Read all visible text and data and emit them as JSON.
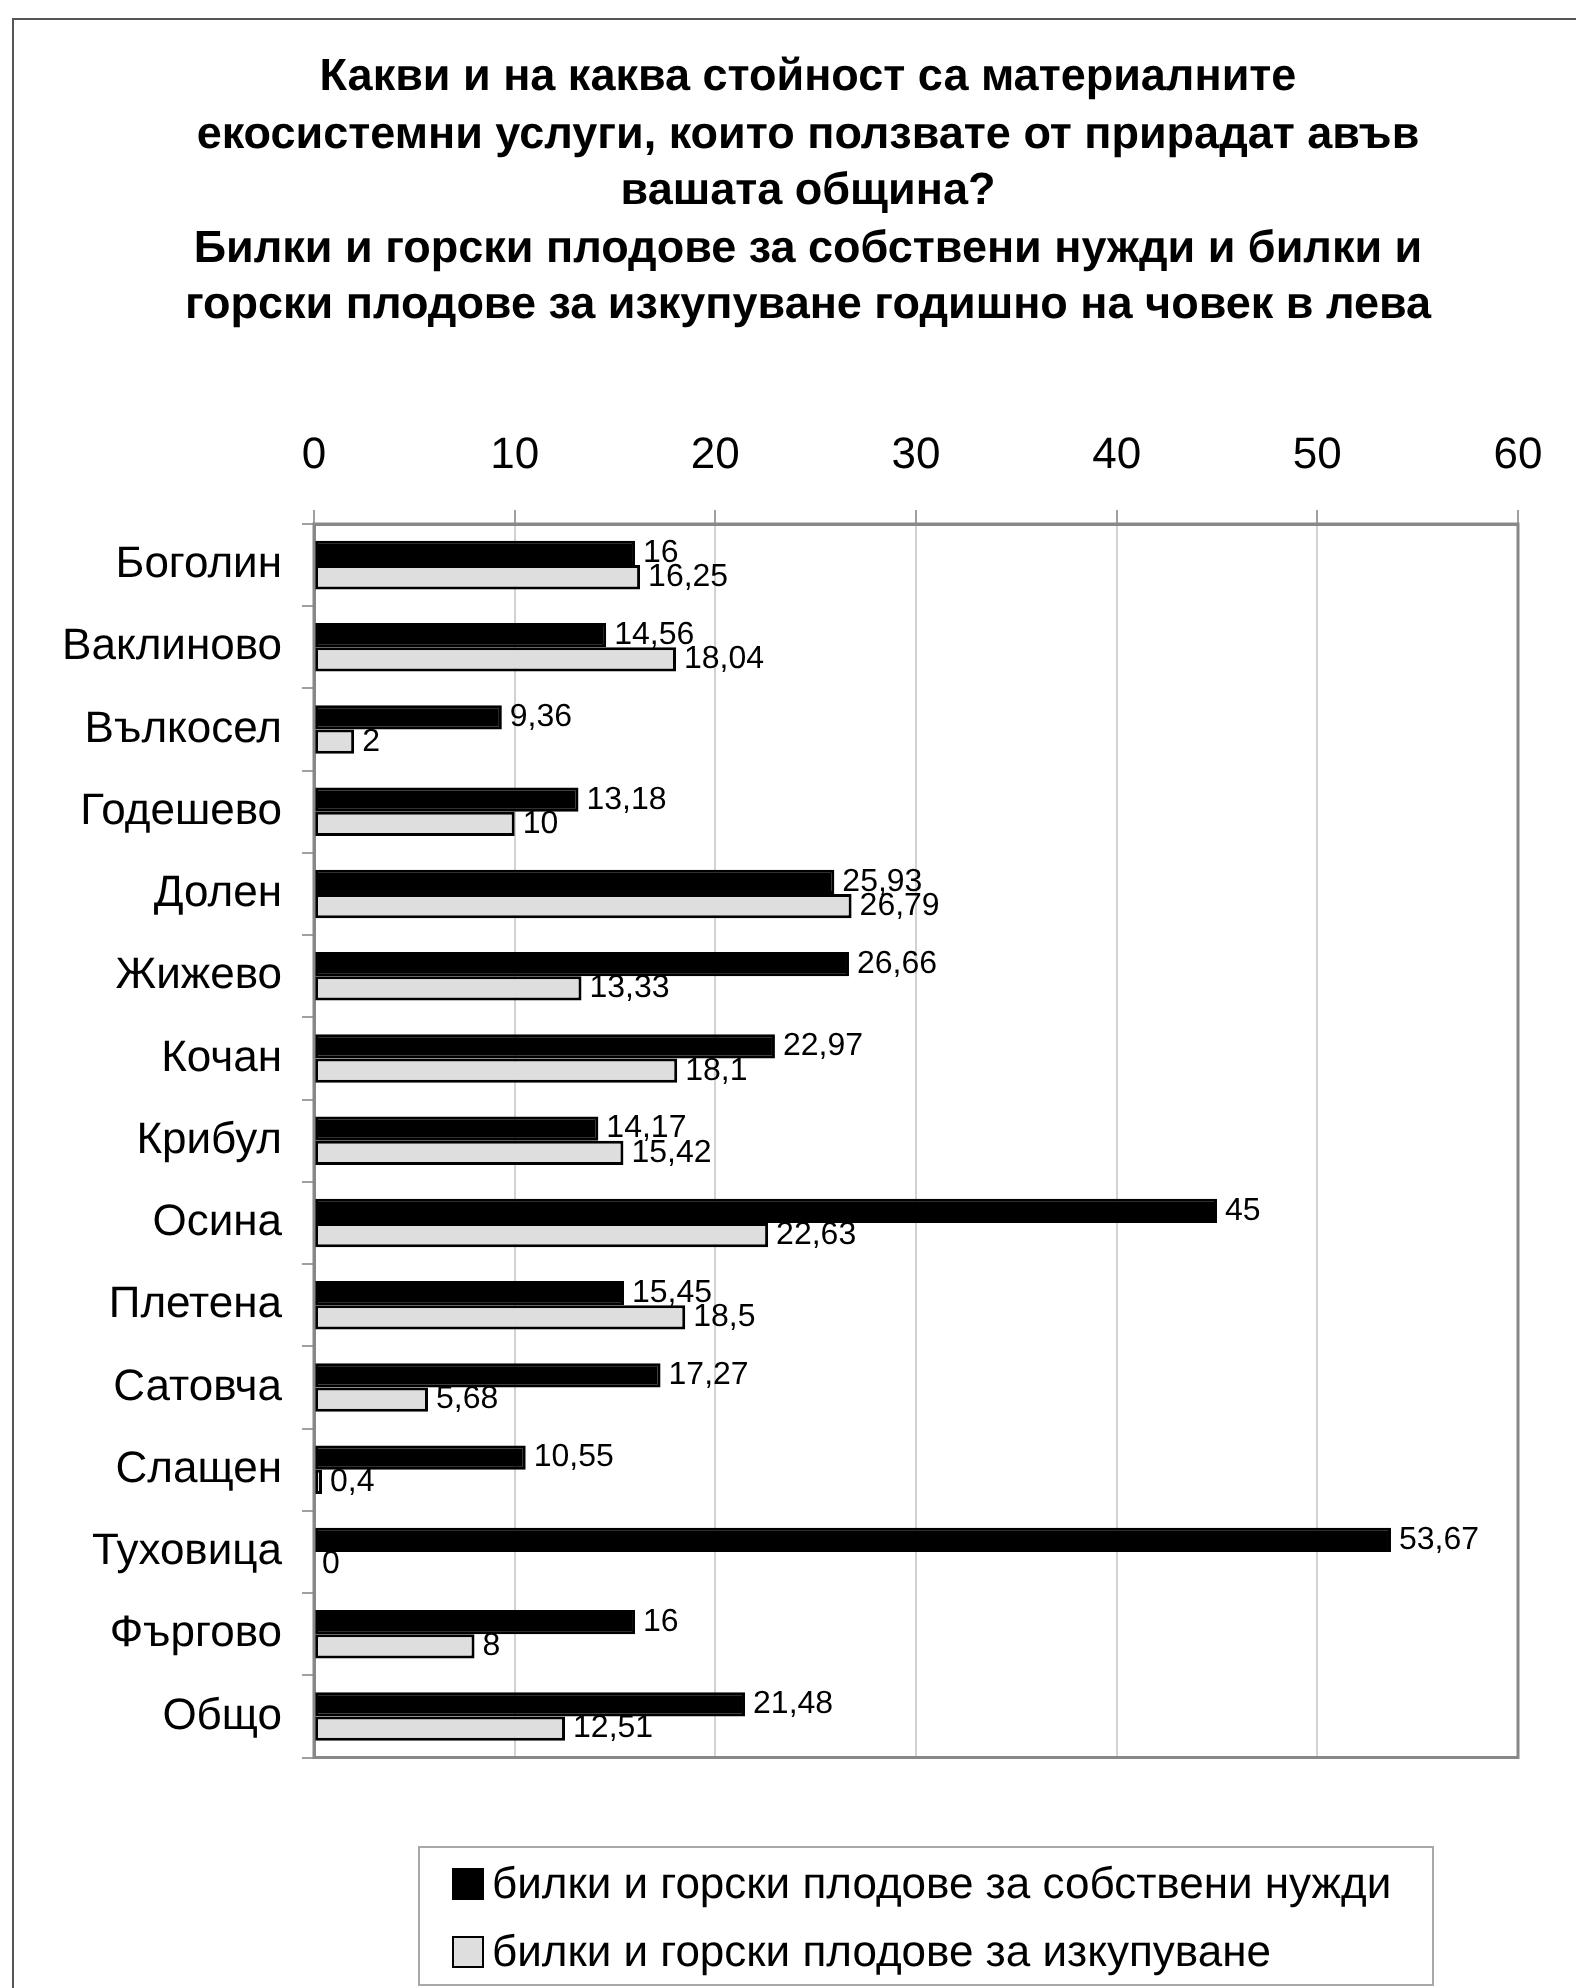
{
  "chart_data": {
    "type": "bar",
    "orientation": "horizontal",
    "title": "Какви и на каква стойност са материалните\nекосистемни услуги, които ползвате от прирадат авъв вашата община?",
    "subtitle": "Билки и горски плодове за собствени нужди и билки и горски плодове за изкупуване годишно на човек в лева",
    "categories": [
      "Боголин",
      "Ваклиново",
      "Вълкосел",
      "Годешево",
      "Долен",
      "Жижево",
      "Кочан",
      "Крибул",
      "Осина",
      "Плетена",
      "Сатовча",
      "Слащен",
      "Туховица",
      "Фъргово",
      "Общо"
    ],
    "series": [
      {
        "name": "билки и горски плодове за собствени нужди",
        "color": "#000000",
        "values": [
          16,
          14.56,
          9.36,
          13.18,
          25.93,
          26.66,
          22.97,
          14.17,
          45,
          15.45,
          17.27,
          10.55,
          53.67,
          16,
          21.48
        ],
        "value_labels": [
          "16",
          "14,56",
          "9,36",
          "13,18",
          "25,93",
          "26,66",
          "22,97",
          "14,17",
          "45",
          "15,45",
          "17,27",
          "10,55",
          "53,67",
          "16",
          "21,48"
        ]
      },
      {
        "name": "билки и горски плодове за изкупуване",
        "color": "#dedede",
        "values": [
          16.25,
          18.04,
          2,
          10,
          26.79,
          13.33,
          18.1,
          15.42,
          22.63,
          18.5,
          5.68,
          0.4,
          0,
          8,
          12.51
        ],
        "value_labels": [
          "16,25",
          "18,04",
          "2",
          "10",
          "26,79",
          "13,33",
          "18,1",
          "15,42",
          "22,63",
          "18,5",
          "5,68",
          "0,4",
          "0",
          "8",
          "12,51"
        ]
      }
    ],
    "xlim": [
      0,
      60
    ],
    "xticks": [
      0,
      10,
      20,
      30,
      40,
      50,
      60
    ],
    "grid": "x",
    "legend": "bottom"
  }
}
